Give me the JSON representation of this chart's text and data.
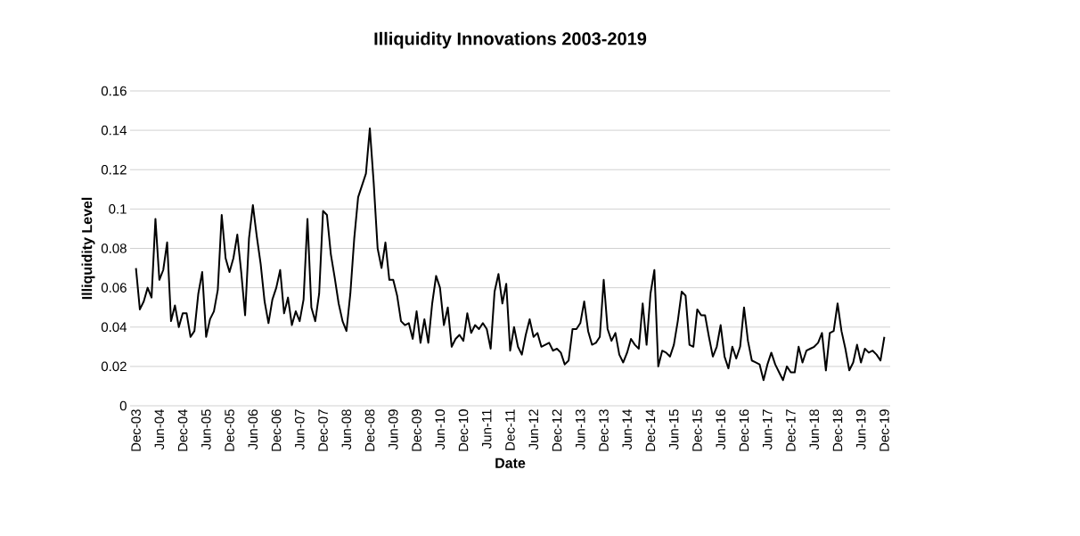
{
  "chart_data": {
    "type": "line",
    "title": "Illiquidity Innovations 2003-2019",
    "xlabel": "Date",
    "ylabel": "Illiquidity Level",
    "categories": [
      "Dec-03",
      null,
      null,
      null,
      null,
      null,
      "Jun-04",
      null,
      null,
      null,
      null,
      null,
      "Dec-04",
      null,
      null,
      null,
      null,
      null,
      "Jun-05",
      null,
      null,
      null,
      null,
      null,
      "Dec-05",
      null,
      null,
      null,
      null,
      null,
      "Jun-06",
      null,
      null,
      null,
      null,
      null,
      "Dec-06",
      null,
      null,
      null,
      null,
      null,
      "Jun-07",
      null,
      null,
      null,
      null,
      null,
      "Dec-07",
      null,
      null,
      null,
      null,
      null,
      "Jun-08",
      null,
      null,
      null,
      null,
      null,
      "Dec-08",
      null,
      null,
      null,
      null,
      null,
      "Jun-09",
      null,
      null,
      null,
      null,
      null,
      "Dec-09",
      null,
      null,
      null,
      null,
      null,
      "Jun-10",
      null,
      null,
      null,
      null,
      null,
      "Dec-10",
      null,
      null,
      null,
      null,
      null,
      "Jun-11",
      null,
      null,
      null,
      null,
      null,
      "Dec-11",
      null,
      null,
      null,
      null,
      null,
      "Jun-12",
      null,
      null,
      null,
      null,
      null,
      "Dec-12",
      null,
      null,
      null,
      null,
      null,
      "Jun-13",
      null,
      null,
      null,
      null,
      null,
      "Dec-13",
      null,
      null,
      null,
      null,
      null,
      "Jun-14",
      null,
      null,
      null,
      null,
      null,
      "Dec-14",
      null,
      null,
      null,
      null,
      null,
      "Jun-15",
      null,
      null,
      null,
      null,
      null,
      "Dec-15",
      null,
      null,
      null,
      null,
      null,
      "Jun-16",
      null,
      null,
      null,
      null,
      null,
      "Dec-16",
      null,
      null,
      null,
      null,
      null,
      "Jun-17",
      null,
      null,
      null,
      null,
      null,
      "Dec-17",
      null,
      null,
      null,
      null,
      null,
      "Jun-18",
      null,
      null,
      null,
      null,
      null,
      "Dec-18",
      null,
      null,
      null,
      null,
      null,
      "Jun-19",
      null,
      null,
      null,
      null,
      null,
      "Dec-19"
    ],
    "series": [
      {
        "color": "#000000",
        "values": [
          0.07,
          0.049,
          0.053,
          0.06,
          0.055,
          0.095,
          0.064,
          0.069,
          0.083,
          0.043,
          0.051,
          0.04,
          0.047,
          0.047,
          0.035,
          0.038,
          0.057,
          0.068,
          0.035,
          0.044,
          0.048,
          0.059,
          0.097,
          0.075,
          0.068,
          0.075,
          0.087,
          0.068,
          0.046,
          0.085,
          0.102,
          0.086,
          0.072,
          0.053,
          0.042,
          0.054,
          0.06,
          0.069,
          0.047,
          0.055,
          0.041,
          0.048,
          0.043,
          0.054,
          0.095,
          0.05,
          0.043,
          0.057,
          0.099,
          0.097,
          0.077,
          0.065,
          0.052,
          0.043,
          0.038,
          0.057,
          0.085,
          0.106,
          0.112,
          0.118,
          0.141,
          0.113,
          0.08,
          0.07,
          0.083,
          0.064,
          0.064,
          0.056,
          0.043,
          0.041,
          0.042,
          0.034,
          0.048,
          0.032,
          0.044,
          0.032,
          0.052,
          0.066,
          0.06,
          0.041,
          0.05,
          0.03,
          0.034,
          0.036,
          0.033,
          0.047,
          0.037,
          0.041,
          0.039,
          0.042,
          0.039,
          0.029,
          0.058,
          0.067,
          0.052,
          0.062,
          0.028,
          0.04,
          0.03,
          0.026,
          0.036,
          0.044,
          0.035,
          0.037,
          0.03,
          0.031,
          0.032,
          0.028,
          0.029,
          0.027,
          0.021,
          0.023,
          0.039,
          0.039,
          0.042,
          0.053,
          0.038,
          0.031,
          0.032,
          0.035,
          0.064,
          0.039,
          0.033,
          0.037,
          0.026,
          0.022,
          0.027,
          0.034,
          0.031,
          0.029,
          0.052,
          0.031,
          0.057,
          0.069,
          0.02,
          0.028,
          0.027,
          0.025,
          0.031,
          0.043,
          0.058,
          0.056,
          0.031,
          0.03,
          0.049,
          0.046,
          0.046,
          0.035,
          0.025,
          0.03,
          0.041,
          0.025,
          0.019,
          0.03,
          0.024,
          0.03,
          0.05,
          0.033,
          0.023,
          0.022,
          0.021,
          0.013,
          0.021,
          0.027,
          0.021,
          0.017,
          0.013,
          0.02,
          0.017,
          0.017,
          0.03,
          0.022,
          0.028,
          0.029,
          0.03,
          0.032,
          0.037,
          0.018,
          0.037,
          0.038,
          0.052,
          0.038,
          0.029,
          0.018,
          0.022,
          0.031,
          0.022,
          0.029,
          0.027,
          0.028,
          0.026,
          0.023,
          0.035
        ]
      }
    ],
    "ylim": [
      0,
      0.16
    ],
    "yticks": [
      0,
      0.02,
      0.04,
      0.06,
      0.08,
      0.1,
      0.12,
      0.14,
      0.16
    ],
    "grid": "y"
  }
}
